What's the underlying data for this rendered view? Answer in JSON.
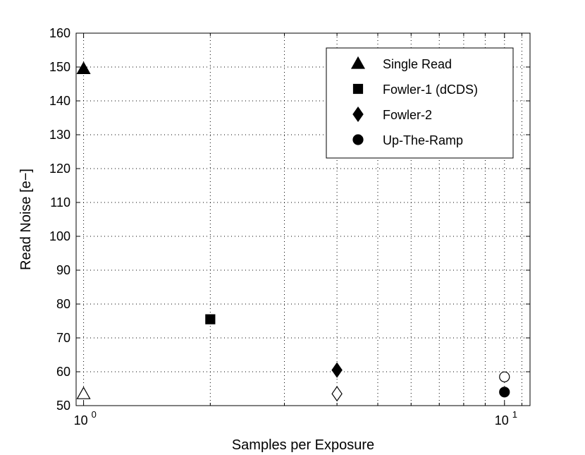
{
  "chart_data": {
    "type": "scatter",
    "title": "",
    "xlabel": "Samples per Exposure",
    "ylabel": "Read Noise [e−]",
    "xscale": "log",
    "xlim": [
      0.96,
      11.5
    ],
    "ylim": [
      50,
      160
    ],
    "grid": true,
    "legend_placement": "top-right",
    "x_ticks": [
      {
        "value": 1,
        "base": "10",
        "exp": "0"
      },
      {
        "value": 10,
        "base": "10",
        "exp": "1"
      }
    ],
    "y_ticks": [
      "50",
      "60",
      "70",
      "80",
      "90",
      "100",
      "110",
      "120",
      "130",
      "140",
      "150",
      "160"
    ],
    "series": [
      {
        "name": "Single Read",
        "marker": "triangle",
        "points": [
          {
            "x": 1,
            "y": 149.5,
            "filled": true
          },
          {
            "x": 1,
            "y": 53.5,
            "filled": false
          }
        ]
      },
      {
        "name": "Fowler-1 (dCDS)",
        "marker": "square",
        "points": [
          {
            "x": 2,
            "y": 75.5,
            "filled": true
          }
        ]
      },
      {
        "name": "Fowler-2",
        "marker": "diamond",
        "points": [
          {
            "x": 4,
            "y": 60.5,
            "filled": true
          },
          {
            "x": 4,
            "y": 53.5,
            "filled": false
          }
        ]
      },
      {
        "name": "Up-The-Ramp",
        "marker": "circle",
        "points": [
          {
            "x": 10,
            "y": 58.5,
            "filled": false
          },
          {
            "x": 10,
            "y": 54,
            "filled": true
          }
        ]
      }
    ]
  }
}
